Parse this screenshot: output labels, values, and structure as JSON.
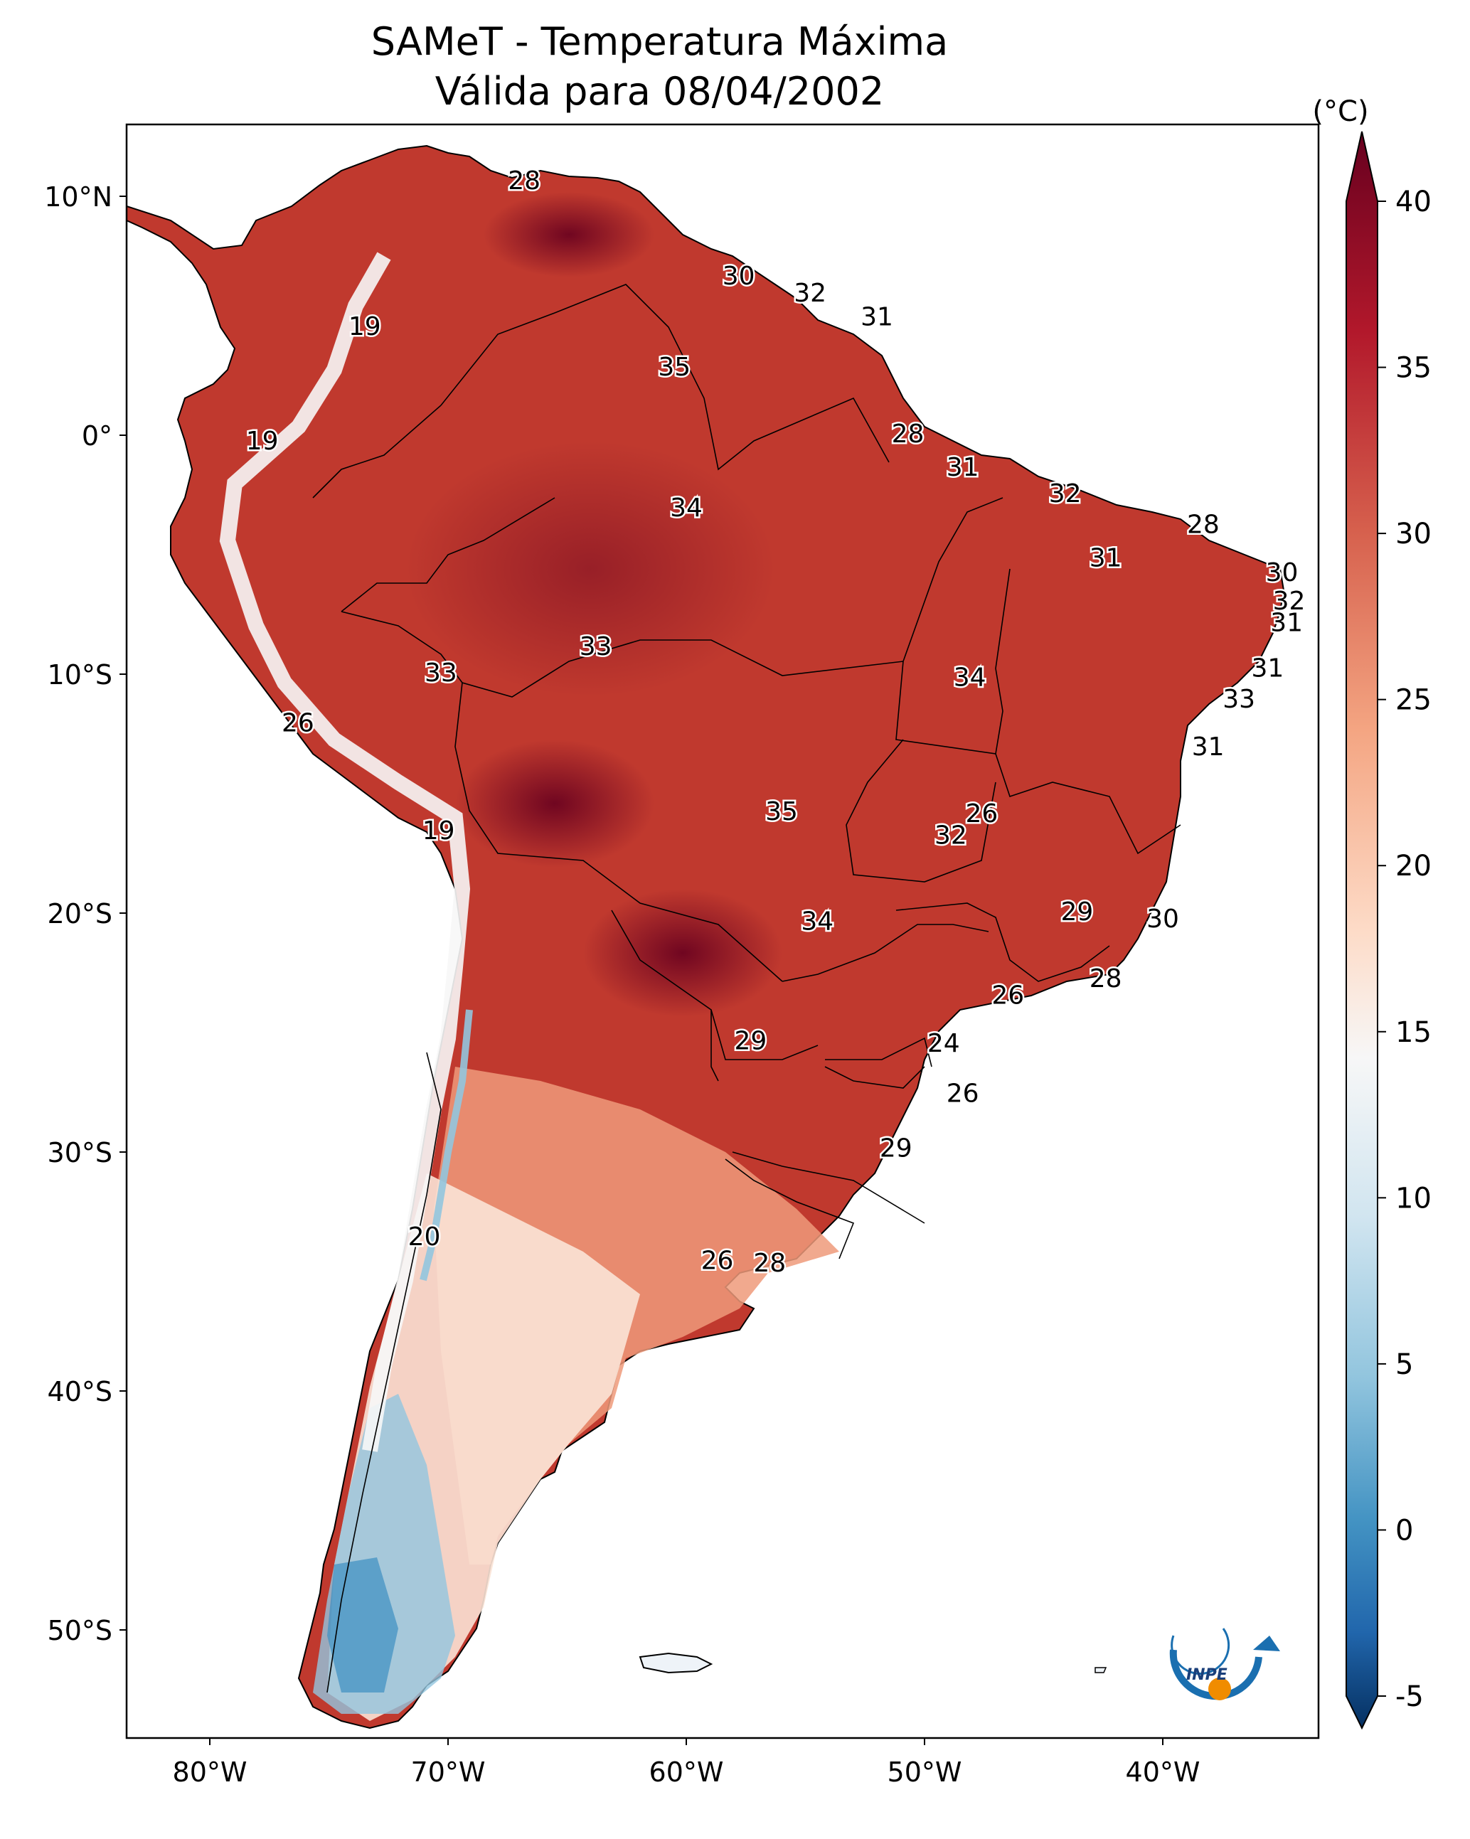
{
  "title": {
    "line1": "SAMeT - Temperatura Máxima",
    "line2": "Válida para 08/04/2002"
  },
  "map": {
    "lon_ticks": [
      "80°W",
      "70°W",
      "60°W",
      "50°W",
      "40°W"
    ],
    "lat_ticks": [
      "10°N",
      "0°",
      "10°S",
      "20°S",
      "30°S",
      "40°S",
      "50°S"
    ],
    "point_labels": [
      {
        "text": "28",
        "lon": -66.8,
        "lat": 10.6
      },
      {
        "text": "19",
        "lon": -73.5,
        "lat": 4.5
      },
      {
        "text": "19",
        "lon": -77.8,
        "lat": -0.3
      },
      {
        "text": "30",
        "lon": -57.8,
        "lat": 6.6
      },
      {
        "text": "32",
        "lon": -54.8,
        "lat": 5.9
      },
      {
        "text": "31",
        "lon": -52.0,
        "lat": 4.9
      },
      {
        "text": "35",
        "lon": -60.5,
        "lat": 2.8
      },
      {
        "text": "28",
        "lon": -50.7,
        "lat": 0.0
      },
      {
        "text": "31",
        "lon": -48.4,
        "lat": -1.4
      },
      {
        "text": "32",
        "lon": -44.1,
        "lat": -2.5
      },
      {
        "text": "28",
        "lon": -38.3,
        "lat": -3.8
      },
      {
        "text": "34",
        "lon": -60.0,
        "lat": -3.1
      },
      {
        "text": "31",
        "lon": -42.4,
        "lat": -5.2
      },
      {
        "text": "30",
        "lon": -35.0,
        "lat": -5.8
      },
      {
        "text": "32",
        "lon": -34.7,
        "lat": -7.0
      },
      {
        "text": "31",
        "lon": -34.8,
        "lat": -7.9
      },
      {
        "text": "33",
        "lon": -63.8,
        "lat": -8.9
      },
      {
        "text": "33",
        "lon": -70.3,
        "lat": -10.0
      },
      {
        "text": "34",
        "lon": -48.1,
        "lat": -10.2
      },
      {
        "text": "31",
        "lon": -35.6,
        "lat": -9.8
      },
      {
        "text": "33",
        "lon": -36.8,
        "lat": -11.1
      },
      {
        "text": "26",
        "lon": -76.3,
        "lat": -12.1
      },
      {
        "text": "31",
        "lon": -38.1,
        "lat": -13.1
      },
      {
        "text": "35",
        "lon": -56.0,
        "lat": -15.8
      },
      {
        "text": "26",
        "lon": -47.6,
        "lat": -15.9
      },
      {
        "text": "32",
        "lon": -48.9,
        "lat": -16.8
      },
      {
        "text": "19",
        "lon": -70.4,
        "lat": -16.6
      },
      {
        "text": "29",
        "lon": -43.6,
        "lat": -20.0
      },
      {
        "text": "30",
        "lon": -40.0,
        "lat": -20.3
      },
      {
        "text": "34",
        "lon": -54.5,
        "lat": -20.4
      },
      {
        "text": "28",
        "lon": -42.4,
        "lat": -22.8
      },
      {
        "text": "26",
        "lon": -46.5,
        "lat": -23.5
      },
      {
        "text": "29",
        "lon": -57.3,
        "lat": -25.4
      },
      {
        "text": "24",
        "lon": -49.2,
        "lat": -25.5
      },
      {
        "text": "26",
        "lon": -48.4,
        "lat": -27.6
      },
      {
        "text": "29",
        "lon": -51.2,
        "lat": -29.9
      },
      {
        "text": "20",
        "lon": -71.0,
        "lat": -33.6
      },
      {
        "text": "26",
        "lon": -58.7,
        "lat": -34.6
      },
      {
        "text": "28",
        "lon": -56.5,
        "lat": -34.7
      }
    ]
  },
  "colorbar": {
    "unit": "(°C)",
    "ticks": [
      "40",
      "35",
      "30",
      "25",
      "20",
      "15",
      "10",
      "5",
      "0",
      "-5"
    ],
    "stops": [
      "#67001f",
      "#b2182b",
      "#d6604d",
      "#f4a582",
      "#fddbc7",
      "#f7f7f7",
      "#d1e5f0",
      "#92c5de",
      "#4393c3",
      "#2166ac",
      "#053061"
    ]
  },
  "logo": {
    "text": "INPE"
  }
}
